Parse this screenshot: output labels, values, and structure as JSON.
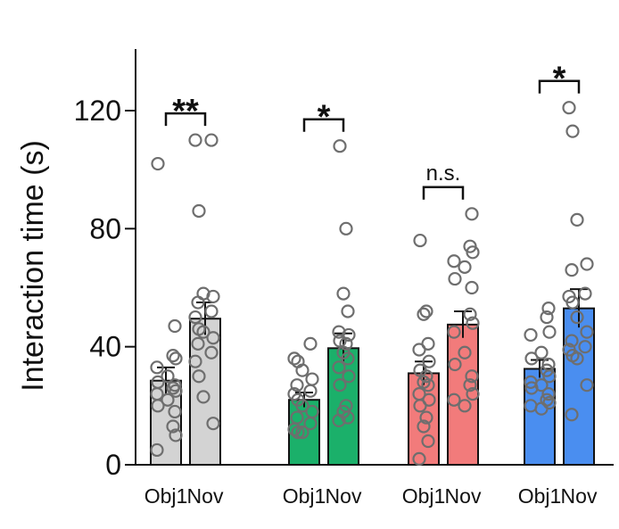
{
  "chart_data": {
    "type": "bar",
    "title": "",
    "xlabel": "",
    "ylabel": "Interaction time (s)",
    "ylim": [
      0,
      140
    ],
    "yticks": [
      0,
      40,
      80,
      120
    ],
    "grid": false,
    "bar_style": "bars with SEM error bars and individual data points (open circles)",
    "groups": [
      {
        "color": "#d3d3d3",
        "bars": [
          {
            "label": "Obj1",
            "mean": 28.5,
            "sem": 4.5,
            "points": [
              102,
              47,
              37,
              36,
              33,
              30,
              28,
              27,
              26,
              25,
              24,
              22,
              20,
              18,
              13,
              10,
              5
            ]
          },
          {
            "label": "Nov",
            "mean": 49.5,
            "sem": 5.5,
            "points": [
              110,
              110,
              86,
              58,
              57,
              55,
              52,
              50,
              46,
              45,
              43,
              41,
              38,
              35,
              30,
              23,
              14
            ]
          }
        ],
        "significance": "**"
      },
      {
        "color": "#1bb06a",
        "bars": [
          {
            "label": "Obj1",
            "mean": 22,
            "sem": 2.5,
            "points": [
              41,
              36,
              35,
              32,
              29,
              27,
              25,
              24,
              22,
              20,
              18,
              16,
              14,
              12,
              11,
              11
            ]
          },
          {
            "label": "Nov",
            "mean": 39.5,
            "sem": 5,
            "points": [
              108,
              80,
              58,
              52,
              45,
              44,
              42,
              41,
              38,
              36,
              33,
              30,
              27,
              20,
              18,
              16,
              15
            ]
          }
        ],
        "significance": "*"
      },
      {
        "color": "#f27b7b",
        "bars": [
          {
            "label": "Obj1",
            "mean": 31,
            "sem": 4,
            "points": [
              76,
              52,
              51,
              41,
              39,
              35,
              32,
              30,
              28,
              27,
              24,
              22,
              20,
              16,
              13,
              8,
              2
            ]
          },
          {
            "label": "Nov",
            "mean": 47.5,
            "sem": 4.5,
            "points": [
              85,
              74,
              72,
              69,
              67,
              63,
              60,
              51,
              48,
              45,
              38,
              34,
              30,
              27,
              24,
              22,
              20
            ]
          }
        ],
        "significance": "n.s."
      },
      {
        "color": "#4a8ef0",
        "bars": [
          {
            "label": "Obj1",
            "mean": 32.5,
            "sem": 3,
            "points": [
              53,
              50,
              45,
              44,
              38,
              36,
              34,
              32,
              30,
              28,
              27,
              26,
              24,
              22,
              21,
              20,
              19
            ]
          },
          {
            "label": "Nov",
            "mean": 53,
            "sem": 6.5,
            "points": [
              121,
              113,
              83,
              68,
              66,
              58,
              57,
              55,
              50,
              45,
              42,
              40,
              39,
              37,
              36,
              27,
              17
            ]
          }
        ],
        "significance": "*"
      }
    ]
  }
}
